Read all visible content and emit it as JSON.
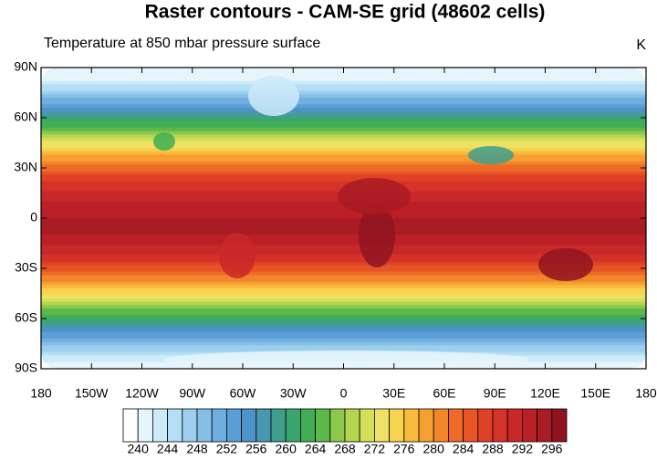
{
  "header": {
    "title": "Raster contours - CAM-SE grid (48602 cells)",
    "subtitle": "Temperature at 850 mbar pressure surface",
    "units": "K"
  },
  "map": {
    "lat_labels": [
      "90N",
      "60N",
      "30N",
      "0",
      "30S",
      "60S",
      "90S"
    ],
    "lon_labels": [
      "180",
      "150W",
      "120W",
      "90W",
      "60W",
      "30W",
      "0",
      "30E",
      "60E",
      "90E",
      "120E",
      "150E",
      "180"
    ]
  },
  "colorbar": {
    "labels": [
      240,
      244,
      248,
      252,
      256,
      260,
      264,
      268,
      272,
      276,
      280,
      284,
      288,
      292,
      296
    ],
    "colors": [
      "#ffffff",
      "#e6f4fb",
      "#cdeaf8",
      "#b3dff4",
      "#9ccfee",
      "#86bfe6",
      "#6fafdf",
      "#5b9fd6",
      "#4d93c9",
      "#4a97b0",
      "#3f9e8e",
      "#3aa56f",
      "#41ad55",
      "#5db84a",
      "#8cc84b",
      "#b4d54f",
      "#d4e05a",
      "#eee264",
      "#f8d34e",
      "#f9bb3c",
      "#f7a032",
      "#f3852b",
      "#ee6a27",
      "#e85426",
      "#df4127",
      "#d53328",
      "#c92828",
      "#bb2027",
      "#a91b25",
      "#8f1420"
    ]
  }
}
